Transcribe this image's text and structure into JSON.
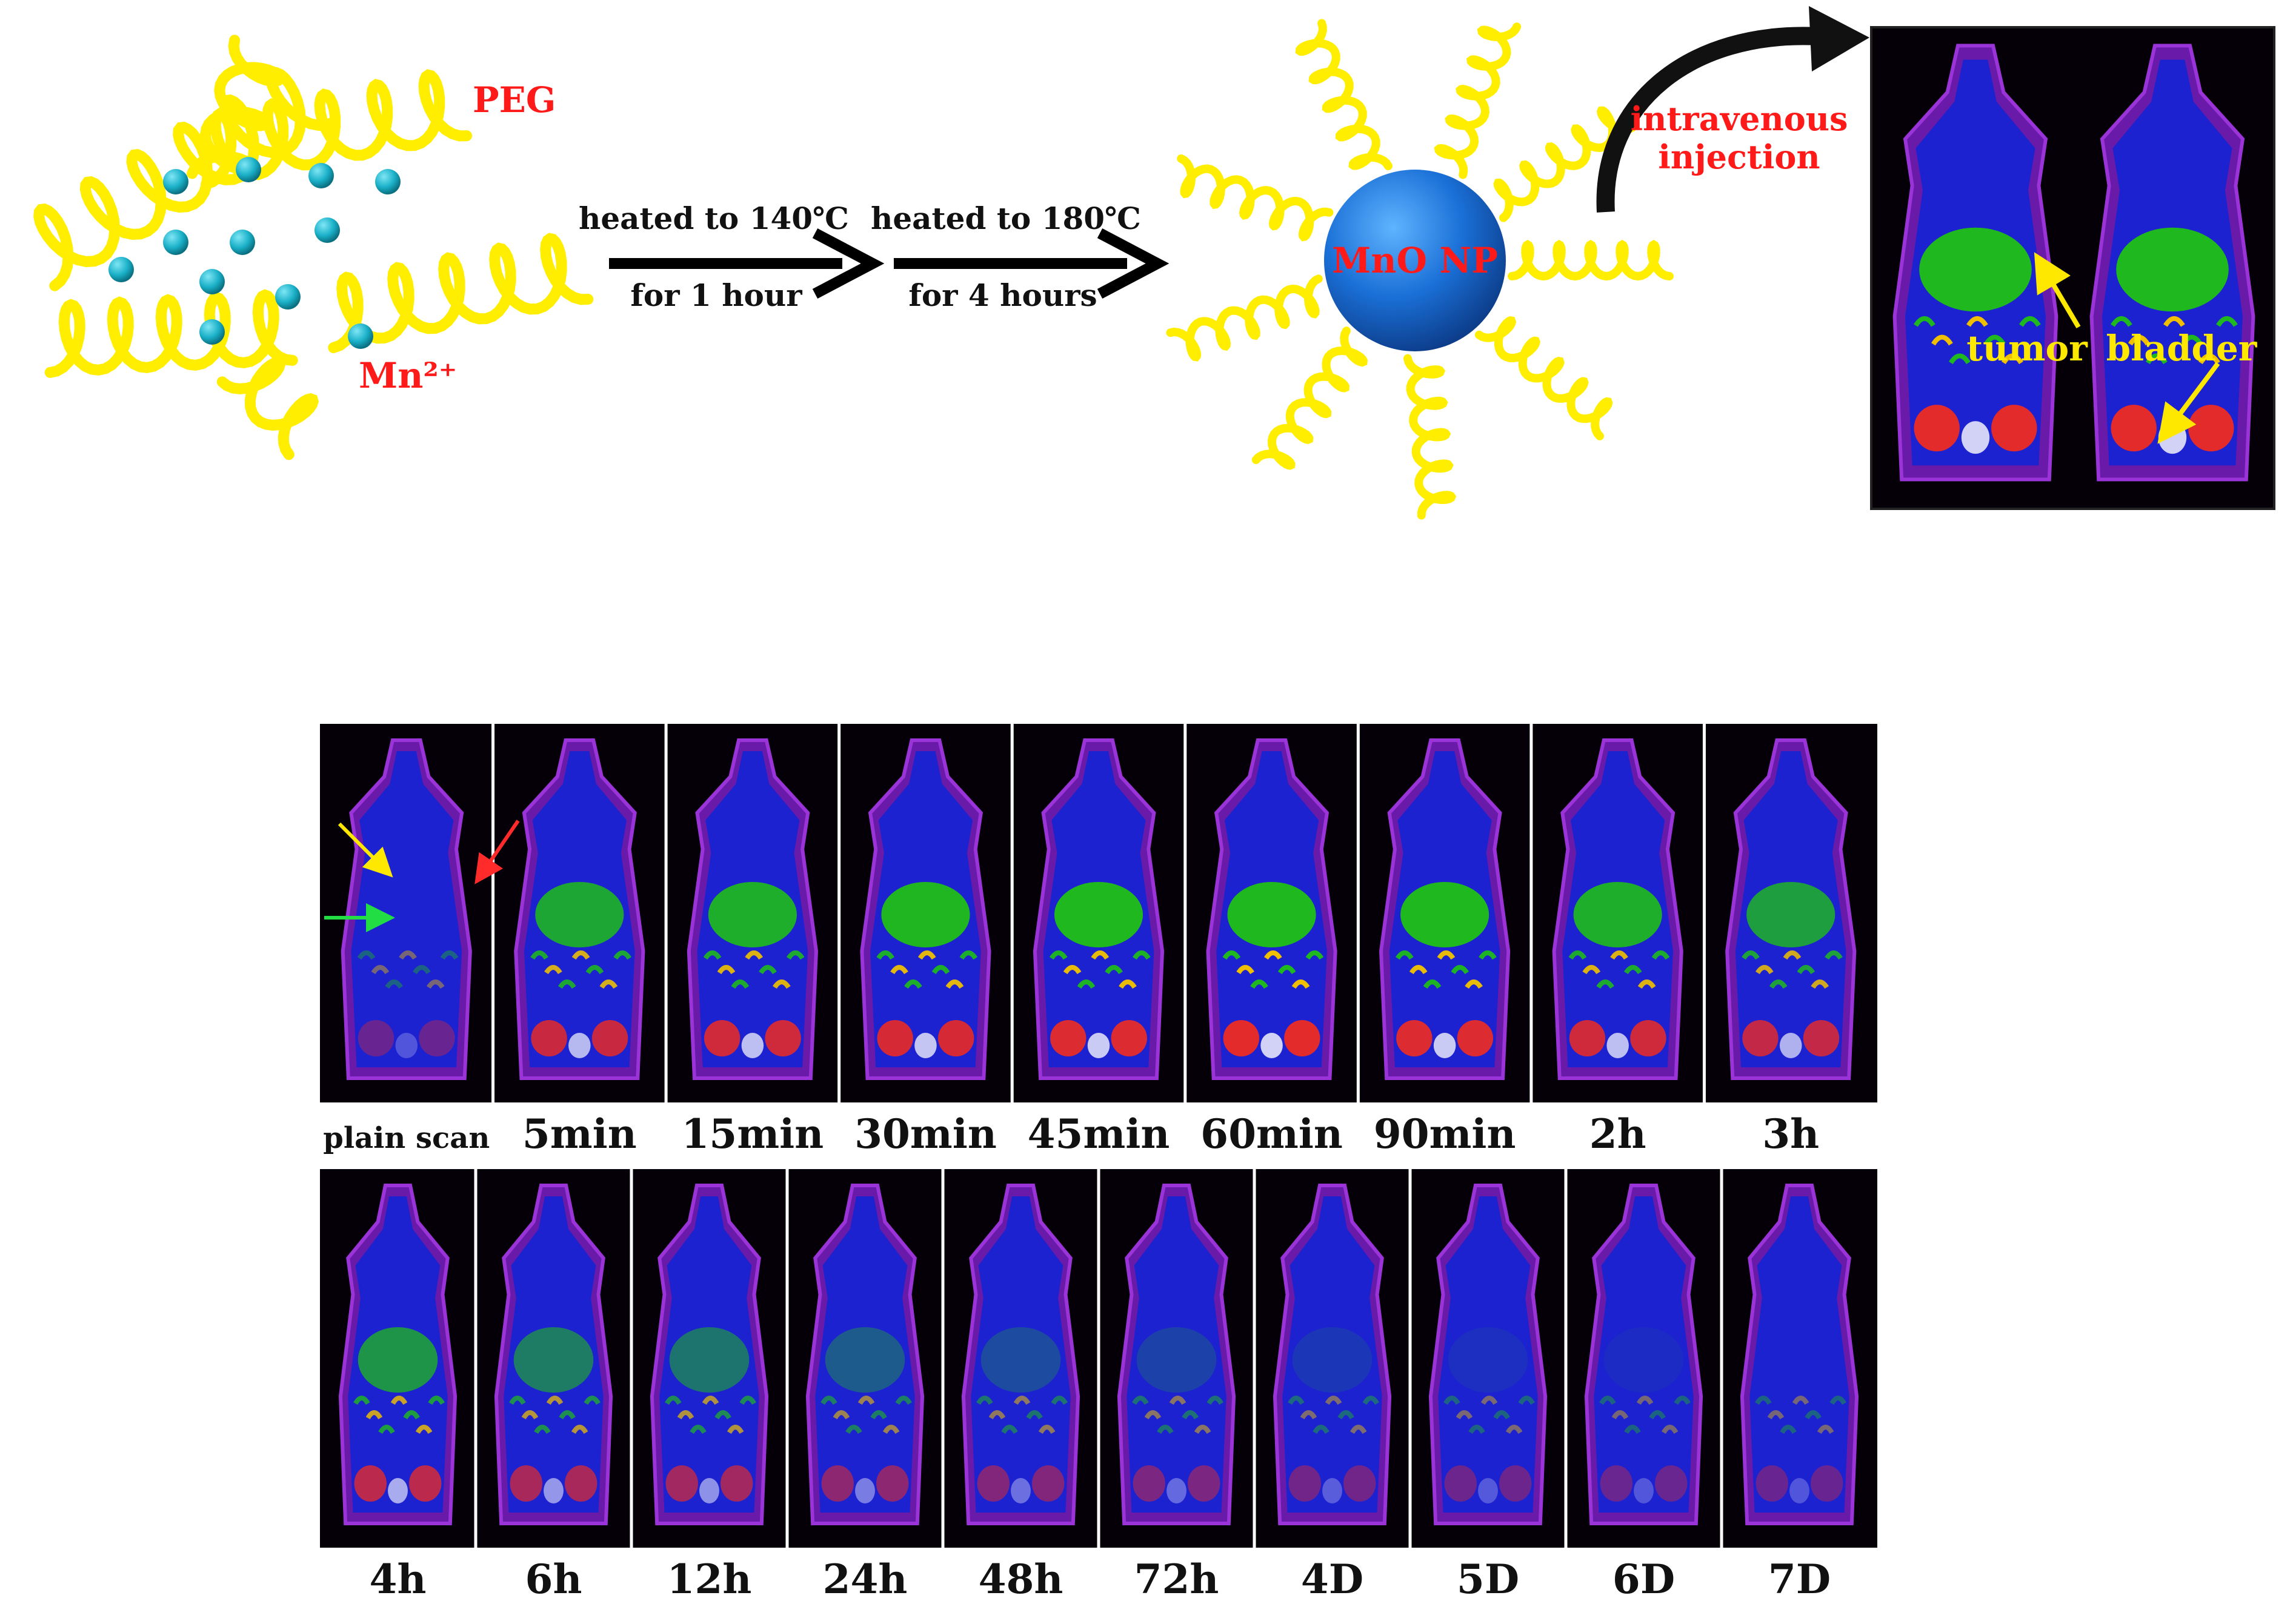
{
  "synthesis": {
    "polymer_label": "PEG",
    "ion_label": "Mn²⁺",
    "step1": {
      "line1": "heated to 140℃",
      "line2": "for 1 hour"
    },
    "step2": {
      "line1": "heated to 180℃",
      "line2": "for 4 hours"
    },
    "nanoparticle_label": "MnO NP",
    "injection_label": {
      "line1": "intravenous",
      "line2": "injection"
    }
  },
  "mri_inset": {
    "tumor_label": "tumor",
    "bladder_label": "bladder"
  },
  "timeline": {
    "row1": [
      "plain scan",
      "5min",
      "15min",
      "30min",
      "45min",
      "60min",
      "90min",
      "2h",
      "3h"
    ],
    "row2": [
      "4h",
      "6h",
      "12h",
      "24h",
      "48h",
      "72h",
      "4D",
      "5D",
      "6D",
      "7D"
    ]
  },
  "colors": {
    "peg": "#ffee00",
    "mn_ion": "#1ab0c8",
    "nanoparticle": "#1a6fd6",
    "label_red": "#ff1a1a",
    "label_yellow": "#ffe800",
    "mri_background": "#050008"
  }
}
